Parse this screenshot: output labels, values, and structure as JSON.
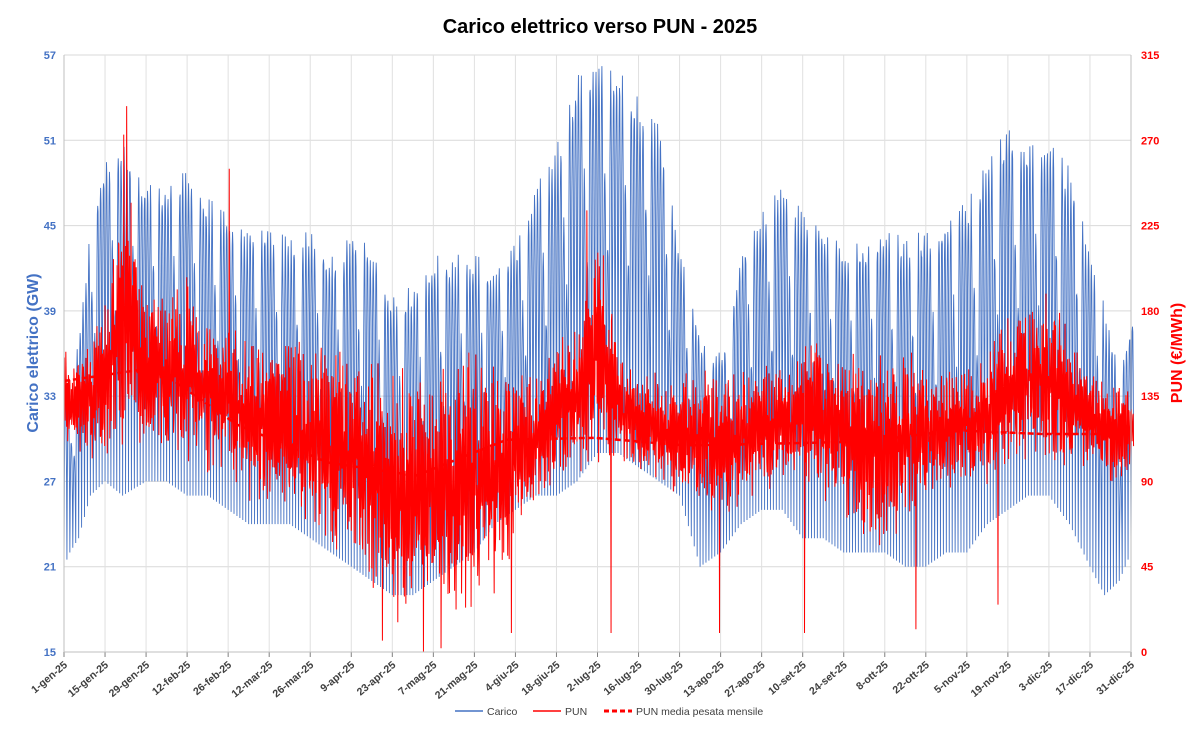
{
  "chart_data": {
    "type": "line",
    "title": "Carico elettrico verso PUN - 2025",
    "ylabel_left": "Carico elettrico (GW)",
    "ylabel_right": "PUN (€/MWh)",
    "left_axis": {
      "min": 15,
      "max": 57,
      "ticks": [
        "15",
        "21",
        "27",
        "33",
        "39",
        "45",
        "51",
        "57"
      ]
    },
    "right_axis": {
      "min": 0,
      "max": 315,
      "ticks": [
        "0",
        "45",
        "90",
        "135",
        "180",
        "225",
        "270",
        "315"
      ]
    },
    "x_range_days": [
      0,
      364
    ],
    "x_tick_labels": [
      "1-gen-25",
      "15-gen-25",
      "29-gen-25",
      "12-feb-25",
      "26-feb-25",
      "12-mar-25",
      "26-mar-25",
      "9-apr-25",
      "23-apr-25",
      "7-mag-25",
      "21-mag-25",
      "4-giu-25",
      "18-giu-25",
      "2-lug-25",
      "16-lug-25",
      "30-lug-25",
      "13-ago-25",
      "27-ago-25",
      "10-set-25",
      "24-set-25",
      "8-ott-25",
      "22-ott-25",
      "5-nov-25",
      "19-nov-25",
      "3-dic-25",
      "17-dic-25",
      "31-dic-25"
    ],
    "grid": true,
    "legend_position": "bottom",
    "series": [
      {
        "name": "Carico",
        "axis": "left",
        "color": "#4472C4",
        "style": "solid",
        "resolution": "hourly (synthesized from daily envelope)",
        "daily_peak_envelope": {
          "days": [
            0,
            2,
            5,
            9,
            14,
            20,
            28,
            35,
            42,
            49,
            56,
            63,
            70,
            77,
            84,
            91,
            98,
            105,
            112,
            119,
            126,
            133,
            140,
            147,
            154,
            161,
            168,
            175,
            182,
            189,
            196,
            203,
            210,
            217,
            224,
            231,
            238,
            245,
            252,
            259,
            266,
            273,
            280,
            287,
            294,
            301,
            308,
            315,
            322,
            329,
            336,
            343,
            350,
            355,
            360,
            364
          ],
          "peak": [
            34,
            33,
            38,
            46,
            50,
            51,
            48,
            48,
            49,
            47,
            46,
            45,
            45,
            44,
            45,
            43,
            45,
            44,
            40,
            41,
            43,
            43,
            43,
            42,
            44,
            48,
            51,
            56,
            57,
            56,
            54,
            52,
            43,
            37,
            36,
            44,
            46,
            48,
            46,
            45,
            44,
            44,
            45,
            44,
            45,
            46,
            47,
            50,
            52,
            51,
            51,
            49,
            43,
            39,
            35,
            39
          ],
          "trough": [
            21,
            22,
            23,
            26,
            27,
            26,
            27,
            27,
            26,
            26,
            25,
            24,
            24,
            24,
            23,
            22,
            21,
            20,
            19,
            19,
            20,
            21,
            22,
            24,
            25,
            26,
            26,
            27,
            29,
            29,
            28,
            27,
            26,
            21,
            22,
            24,
            25,
            25,
            23,
            23,
            22,
            22,
            22,
            21,
            21,
            22,
            22,
            24,
            25,
            26,
            26,
            24,
            21,
            19,
            20,
            22
          ]
        }
      },
      {
        "name": "PUN",
        "axis": "right",
        "color": "#FF0000",
        "style": "solid",
        "resolution": "hourly (synthesized from daily envelope)",
        "daily_envelope": {
          "days": [
            0,
            7,
            14,
            20,
            28,
            35,
            42,
            49,
            56,
            63,
            70,
            77,
            84,
            91,
            98,
            105,
            112,
            119,
            126,
            133,
            140,
            147,
            154,
            161,
            168,
            175,
            182,
            189,
            196,
            203,
            210,
            217,
            224,
            231,
            238,
            245,
            252,
            259,
            266,
            273,
            280,
            287,
            294,
            301,
            308,
            315,
            322,
            329,
            336,
            343,
            350,
            357,
            364
          ],
          "high": [
            160,
            165,
            190,
            250,
            190,
            190,
            200,
            175,
            170,
            165,
            165,
            165,
            165,
            165,
            160,
            150,
            150,
            150,
            150,
            155,
            160,
            150,
            150,
            150,
            165,
            175,
            230,
            160,
            150,
            145,
            145,
            150,
            145,
            150,
            150,
            150,
            165,
            160,
            160,
            155,
            160,
            160,
            150,
            150,
            150,
            160,
            175,
            190,
            190,
            165,
            150,
            145,
            140
          ],
          "low": [
            110,
            100,
            105,
            110,
            110,
            105,
            100,
            95,
            95,
            80,
            75,
            70,
            60,
            55,
            50,
            30,
            15,
            20,
            30,
            20,
            25,
            35,
            60,
            80,
            90,
            95,
            100,
            100,
            95,
            90,
            80,
            75,
            70,
            80,
            85,
            90,
            90,
            80,
            75,
            60,
            55,
            70,
            80,
            85,
            90,
            90,
            100,
            100,
            100,
            100,
            95,
            90,
            90
          ]
        },
        "notable_spikes": [
          {
            "day": 21,
            "value": 288
          },
          {
            "day": 20,
            "value": 273
          },
          {
            "day": 56,
            "value": 255
          },
          {
            "day": 178,
            "value": 233
          }
        ],
        "notable_dips": [
          {
            "day": 108,
            "value": 6
          },
          {
            "day": 122,
            "value": 0
          },
          {
            "day": 128,
            "value": 2
          },
          {
            "day": 152,
            "value": 10
          },
          {
            "day": 186,
            "value": 10
          },
          {
            "day": 223,
            "value": 10
          },
          {
            "day": 252,
            "value": 10
          },
          {
            "day": 290,
            "value": 12
          },
          {
            "day": 318,
            "value": 25
          }
        ]
      },
      {
        "name": "PUN media pesata mensile",
        "axis": "right",
        "color": "#FF0000",
        "style": "dashed",
        "monthly_days": [
          0,
          31,
          59,
          90,
          120,
          151,
          181,
          212,
          243,
          273,
          304,
          334,
          364
        ],
        "values": [
          143,
          150,
          120,
          100,
          93,
          112,
          113,
          109,
          110,
          111,
          117,
          115,
          115
        ]
      }
    ]
  }
}
